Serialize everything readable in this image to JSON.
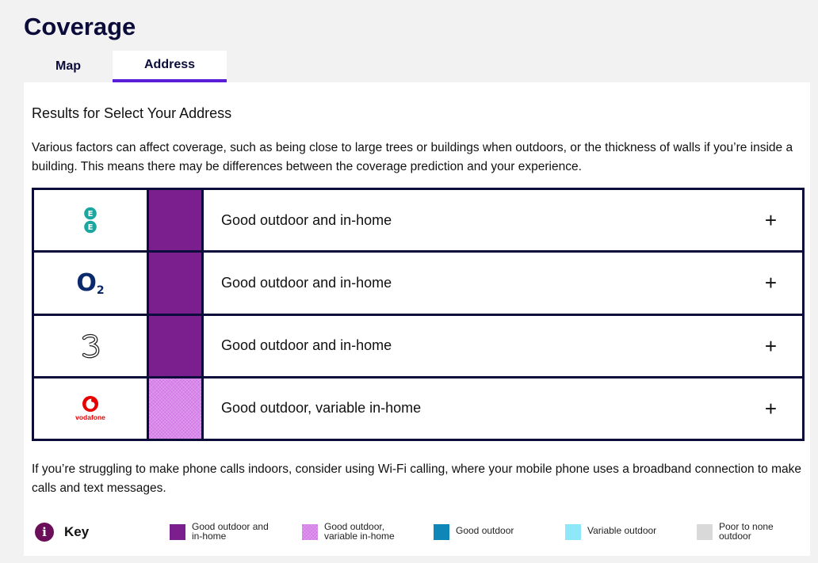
{
  "page": {
    "title": "Coverage"
  },
  "tabs": [
    {
      "label": "Map",
      "active": false
    },
    {
      "label": "Address",
      "active": true
    }
  ],
  "results": {
    "title": "Results for Select Your Address",
    "intro": "Various factors can affect coverage, such as being close to large trees or buildings when outdoors, or the thickness of walls if you’re inside a building. This means there may be differences between the coverage prediction and your experience."
  },
  "networks": [
    {
      "logo": "ee-logo",
      "status": "Good outdoor and in-home",
      "color": "#7b1e8e",
      "expand": "+"
    },
    {
      "logo": "o2-logo",
      "logo_text": "O",
      "logo_sub": "2",
      "status": "Good outdoor and in-home",
      "color": "#7b1e8e",
      "expand": "+"
    },
    {
      "logo": "three-logo",
      "status": "Good outdoor and in-home",
      "color": "#7b1e8e",
      "expand": "+"
    },
    {
      "logo": "vodafone-logo",
      "logo_text": "vodafone",
      "status": "Good outdoor, variable in-home",
      "color": "#d37ae6",
      "expand": "+"
    }
  ],
  "footer": {
    "text": "If you’re struggling to make phone calls indoors, consider using Wi-Fi calling, where your mobile phone uses a broadband connection to make calls and text messages."
  },
  "key": {
    "icon_text": "i",
    "label": "Key",
    "items": [
      {
        "label": "Good outdoor and in-home",
        "color": "#7b1e8e"
      },
      {
        "label": "Good outdoor, variable in-home",
        "color": "#d37ae6"
      },
      {
        "label": "Good outdoor",
        "color": "#0f86b8"
      },
      {
        "label": "Variable outdoor",
        "color": "#8ee8fa"
      },
      {
        "label": "Poor to none outdoor",
        "color": "#d9d9d9"
      }
    ]
  }
}
